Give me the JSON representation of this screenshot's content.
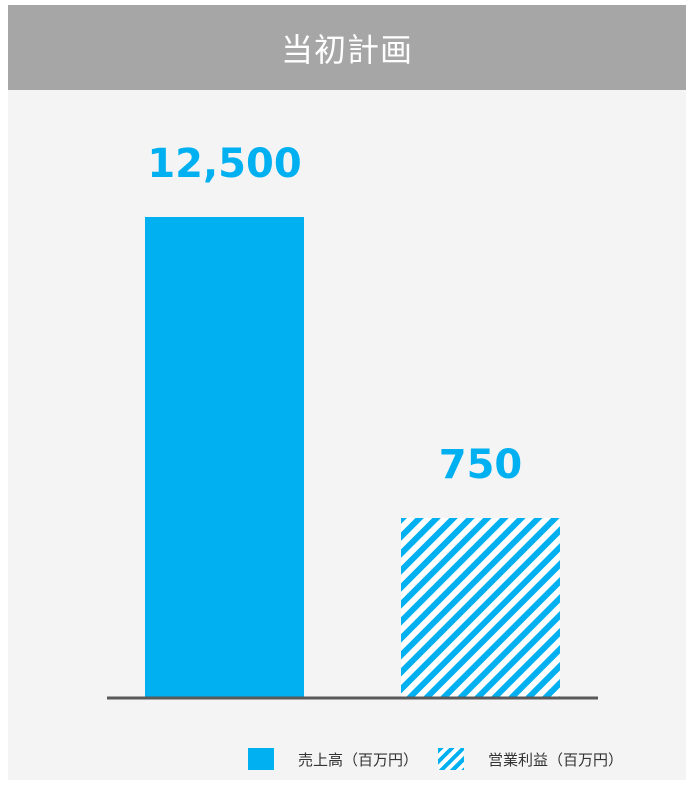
{
  "header": {
    "title": "当初計画"
  },
  "colors": {
    "accent": "#00b0f0",
    "header_bg": "#a6a6a6",
    "panel_bg": "#f4f4f4",
    "axis": "#595959"
  },
  "chart_data": {
    "type": "bar",
    "title": "当初計画",
    "categories": [
      "売上高（百万円）",
      "営業利益（百万円）"
    ],
    "series": [
      {
        "name": "売上高（百万円）",
        "values": [
          12500,
          null
        ],
        "pattern": "solid"
      },
      {
        "name": "営業利益（百万円）",
        "values": [
          null,
          750
        ],
        "pattern": "diagonal-stripes"
      }
    ],
    "data_labels": [
      "12,500",
      "750"
    ],
    "legend_position": "bottom-right",
    "grid": false,
    "scale_note": "bars drawn with independent scales per category"
  },
  "legend": {
    "items": [
      {
        "label": "売上高（百万円）",
        "style": "solid"
      },
      {
        "label": "営業利益（百万円）",
        "style": "hatched"
      }
    ]
  }
}
